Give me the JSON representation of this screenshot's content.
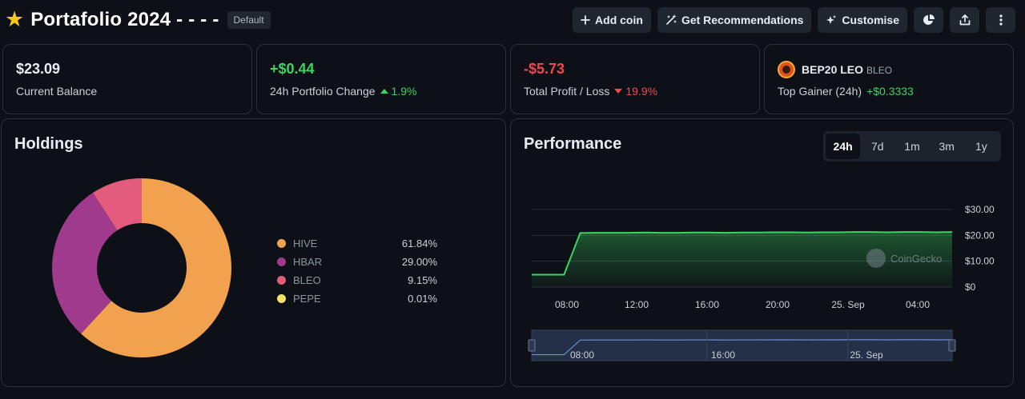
{
  "header": {
    "title": "Portafolio 2024 - - - -",
    "badge": "Default",
    "buttons": {
      "add_coin": "Add coin",
      "recommendations": "Get Recommendations",
      "customise": "Customise"
    }
  },
  "stats": {
    "balance": {
      "value": "$23.09",
      "label": "Current Balance"
    },
    "change": {
      "value": "+$0.44",
      "label": "24h Portfolio Change",
      "pct": "1.9%"
    },
    "profit": {
      "value": "-$5.73",
      "label": "Total Profit / Loss",
      "pct": "19.9%"
    },
    "gainer": {
      "name": "BEP20 LEO",
      "symbol": "BLEO",
      "label": "Top Gainer (24h)",
      "value": "+$0.3333"
    }
  },
  "holdings": {
    "title": "Holdings",
    "items": [
      {
        "name": "HIVE",
        "pct": "61.84%",
        "value": 61.84,
        "color": "#f2a14f"
      },
      {
        "name": "HBAR",
        "pct": "29.00%",
        "value": 29.0,
        "color": "#a03a8c"
      },
      {
        "name": "BLEO",
        "pct": "9.15%",
        "value": 9.15,
        "color": "#e45c7d"
      },
      {
        "name": "PEPE",
        "pct": "0.01%",
        "value": 0.01,
        "color": "#f5e06a"
      }
    ]
  },
  "performance": {
    "title": "Performance",
    "tabs": [
      "24h",
      "7d",
      "1m",
      "3m",
      "1y"
    ],
    "active_tab": "24h",
    "watermark": "CoinGecko"
  },
  "chart_data": {
    "type": "area",
    "y_ticks": [
      "$30.00",
      "$20.00",
      "$10.00",
      "$0"
    ],
    "ylim": [
      0,
      30
    ],
    "x_ticks": [
      "08:00",
      "12:00",
      "16:00",
      "20:00",
      "25. Sep",
      "04:00"
    ],
    "x_hours": [
      0,
      1,
      2,
      3,
      4,
      5,
      6,
      7,
      8,
      9,
      10,
      11,
      12,
      13,
      14,
      15,
      16,
      17,
      18,
      19,
      20,
      21,
      22,
      23,
      24,
      25,
      26
    ],
    "series": [
      {
        "values": [
          4.8,
          4.8,
          4.8,
          20.9,
          21.0,
          21.0,
          21.0,
          21.1,
          21.0,
          21.0,
          21.1,
          21.1,
          21.0,
          21.1,
          21.1,
          21.2,
          21.2,
          21.1,
          21.2,
          21.2,
          21.3,
          21.3,
          21.2,
          21.3,
          21.3,
          21.2,
          21.3
        ]
      }
    ],
    "navigator_ticks": [
      "08:00",
      "16:00",
      "25. Sep"
    ],
    "line_color": "#3fd35f"
  }
}
